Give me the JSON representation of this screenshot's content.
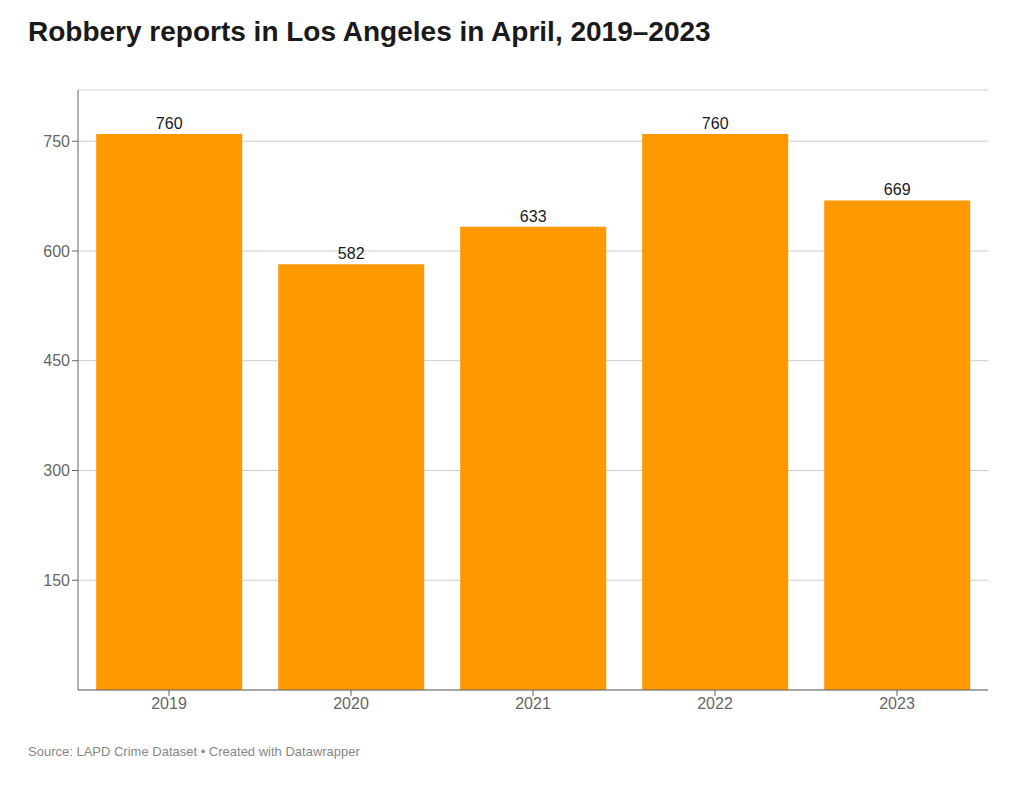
{
  "chart_data": {
    "type": "bar",
    "title": "Robbery reports in Los Angeles in April, 2019–2023",
    "categories": [
      "2019",
      "2020",
      "2021",
      "2022",
      "2023"
    ],
    "values": [
      760,
      582,
      633,
      760,
      669
    ],
    "color": "#FF9900",
    "ylim": [
      0,
      820
    ],
    "yticks": [
      150,
      300,
      450,
      600,
      750
    ],
    "grid": true,
    "data_labels": true,
    "annotations": [
      "Source: LAPD Crime Dataset • Created with Datawrapper"
    ]
  }
}
